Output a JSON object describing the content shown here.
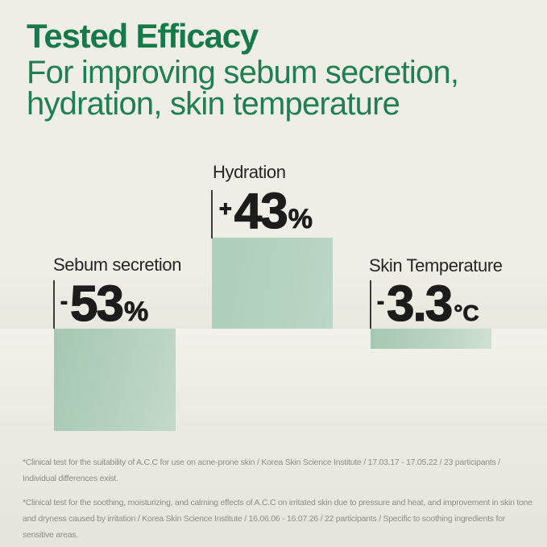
{
  "header": {
    "title": "Tested Efficacy",
    "subtitle_line1": "For improving sebum secretion,",
    "subtitle_line2": "hydration, skin temperature"
  },
  "chart_data": {
    "type": "bar",
    "title": "Tested Efficacy",
    "subtitle": "For improving sebum secretion, hydration, skin temperature",
    "orientation": "vertical",
    "baseline": 0,
    "categories": [
      "Sebum secretion",
      "Hydration",
      "Skin Temperature"
    ],
    "values": [
      -53,
      43,
      -3.3
    ],
    "units": [
      "%",
      "%",
      "°C"
    ],
    "value_labels": [
      "-53%",
      "+43%",
      "-3.3°C"
    ],
    "bar_color": "#b2d2c0",
    "grid": "off",
    "legend": "none",
    "groups": [
      {
        "label": "Sebum secretion",
        "sign": "-",
        "display_value": "53",
        "unit": "%",
        "value": -53
      },
      {
        "label": "Hydration",
        "sign": "+",
        "display_value": "43",
        "unit": "%",
        "value": 43
      },
      {
        "label": "Skin Temperature",
        "sign": "-",
        "display_value": "3.3",
        "unit": "°C",
        "value": -3.3
      }
    ]
  },
  "colors": {
    "background_top": "#efeee6",
    "background_bottom": "#e6e5dd",
    "title_green": "#15794a",
    "subtitle_green": "#1f7f51",
    "bar_green": "#b2d2c0",
    "number_black": "#1c1c1c",
    "footnote_gray": "#8f8e86"
  },
  "footnotes": [
    "*Clinical test for the suitability of A.C.C for use on acne-prone skin / Korea Skin Science Institute / 17.03.17 - 17.05.22 / 23 participants / Individual differences exist.",
    "*Clinical test for the soothing, moisturizing, and calming effects of A.C.C on irritated skin due to pressure and heat, and improvement in skin tone and dryness caused by irritation / Korea Skin Science Institute / 16.06.06 - 16.07.26 / 22 participants / Specific to soothing ingredients for sensitive areas."
  ]
}
